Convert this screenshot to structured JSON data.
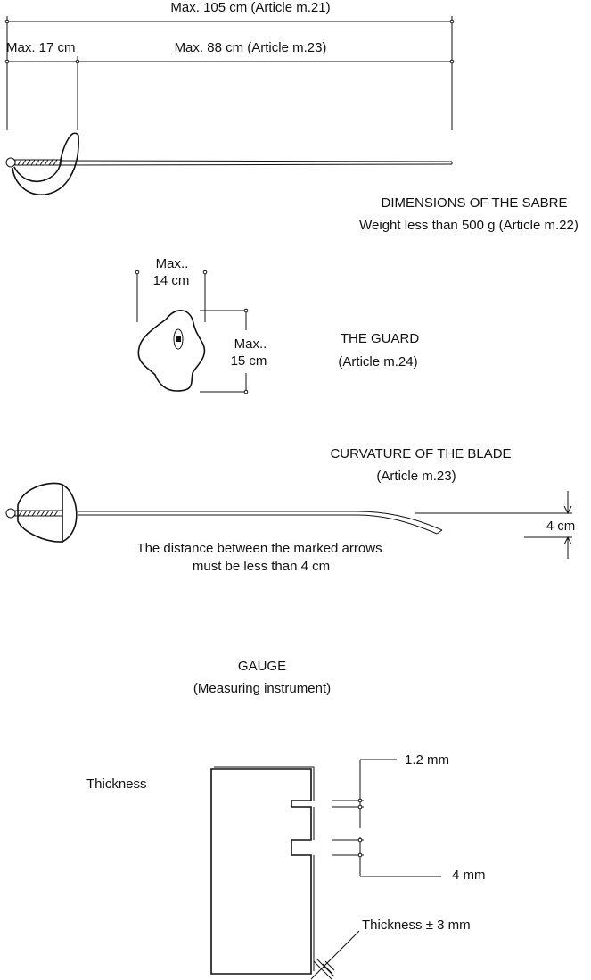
{
  "sabre": {
    "total_length_label": "Max. 105 cm (Article m.21)",
    "guard_length_label": "Max. 17 cm",
    "blade_length_label": "Max. 88 cm (Article m.23)",
    "title": "DIMENSIONS OF THE SABRE",
    "weight_note": "Weight less than 500 g (Article m.22)"
  },
  "guard": {
    "width_label_line1": "Max..",
    "width_label_line2": "14 cm",
    "height_label_line1": "Max..",
    "height_label_line2": "15 cm",
    "title": "THE GUARD",
    "article": "(Article m.24)"
  },
  "curvature": {
    "title": "CURVATURE OF THE BLADE",
    "article": "(Article m.23)",
    "distance_label": "4 cm",
    "note_line1": "The distance between the marked arrows",
    "note_line2": "must be less than 4 cm"
  },
  "gauge": {
    "title": "GAUGE",
    "subtitle": "(Measuring instrument)",
    "thickness_heading": "Thickness",
    "slot1_label": "1.2 mm",
    "slot2_label": "4 mm",
    "body_thickness_label": "Thickness ± 3 mm"
  }
}
